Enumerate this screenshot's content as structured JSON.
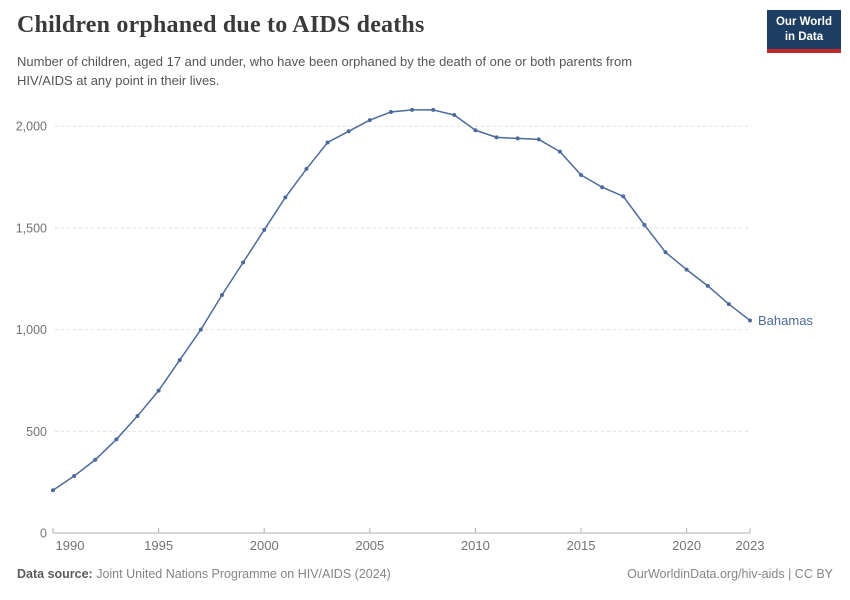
{
  "header": {
    "title": "Children orphaned due to AIDS deaths",
    "subtitle_line1": "Number of children, aged 17 and under, who have been orphaned by the death of one or both parents from",
    "subtitle_line2": "HIV/AIDS at any point in their lives."
  },
  "logo": {
    "line1": "Our World",
    "line2": "in Data",
    "bg_color": "#1d3d63",
    "accent_color": "#c0282e"
  },
  "footer": {
    "source_label": "Data source:",
    "source_text": " Joint United Nations Programme on HIV/AIDS (2024)",
    "right_text": "OurWorldinData.org/hiv-aids | CC BY"
  },
  "chart_data": {
    "type": "line",
    "title": "Children orphaned due to AIDS deaths",
    "entity_label": "Bahamas",
    "line_color": "#4c6a9c",
    "grid": "horizontal-dashed",
    "grid_color": "#dedede",
    "axis_color": "#b0b0b0",
    "tick_label_color": "#737373",
    "xlim": [
      1990,
      2023
    ],
    "ylim": [
      0,
      2000
    ],
    "x_ticks": [
      1990,
      1995,
      2000,
      2005,
      2010,
      2015,
      2020,
      2023
    ],
    "y_ticks": [
      0,
      500,
      1000,
      1500,
      2000
    ],
    "series": [
      {
        "name": "Bahamas",
        "x": [
          1990,
          1991,
          1992,
          1993,
          1994,
          1995,
          1996,
          1997,
          1998,
          1999,
          2000,
          2001,
          2002,
          2003,
          2004,
          2005,
          2006,
          2007,
          2008,
          2009,
          2010,
          2011,
          2012,
          2013,
          2014,
          2015,
          2016,
          2017,
          2018,
          2019,
          2020,
          2021,
          2022,
          2023
        ],
        "values": [
          210,
          280,
          360,
          460,
          575,
          700,
          850,
          1000,
          1170,
          1330,
          1490,
          1650,
          1790,
          1920,
          1975,
          2030,
          2070,
          2080,
          2080,
          2055,
          1980,
          1945,
          1940,
          1935,
          1875,
          1760,
          1700,
          1655,
          1515,
          1380,
          1295,
          1215,
          1125,
          1045
        ]
      }
    ]
  }
}
